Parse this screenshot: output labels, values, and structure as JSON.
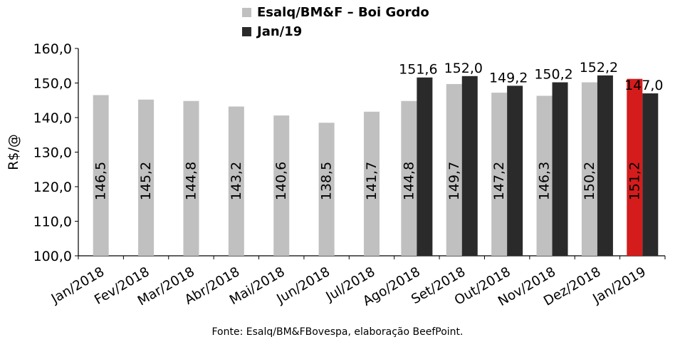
{
  "chart_data": {
    "type": "bar",
    "ylabel": "R$/@",
    "ylim": [
      100,
      160
    ],
    "yticks": [
      "100,0",
      "110,0",
      "120,0",
      "130,0",
      "140,0",
      "150,0",
      "160,0"
    ],
    "grid": false,
    "legend_position": "top-center",
    "categories": [
      "Jan/2018",
      "Fev/2018",
      "Mar/2018",
      "Abr/2018",
      "Mai/2018",
      "Jun/2018",
      "Jul/2018",
      "Ago/2018",
      "Set/2018",
      "Out/2018",
      "Nov/2018",
      "Dez/2018",
      "Jan/2019"
    ],
    "series": [
      {
        "name": "Esalq/BM&F – Boi Gordo",
        "color": "#c0c0c0",
        "values": [
          146.5,
          145.2,
          144.8,
          143.2,
          140.6,
          138.5,
          141.7,
          144.8,
          149.7,
          147.2,
          146.3,
          150.2,
          151.2
        ],
        "labels": [
          "146,5",
          "145,2",
          "144,8",
          "143,2",
          "140,6",
          "138,5",
          "141,7",
          "144,8",
          "149,7",
          "147,2",
          "146,3",
          "150,2",
          "151,2"
        ],
        "highlight": {
          "index": 12,
          "color": "#d41c1c"
        }
      },
      {
        "name": "Jan/19",
        "color": "#2a2a2a",
        "values": [
          null,
          null,
          null,
          null,
          null,
          null,
          null,
          151.6,
          152.0,
          149.2,
          150.2,
          152.2,
          147.0
        ],
        "labels": [
          null,
          null,
          null,
          null,
          null,
          null,
          null,
          "151,6",
          "152,0",
          "149,2",
          "150,2",
          "152,2",
          "147,0"
        ]
      }
    ]
  },
  "source": "Fonte: Esalq/BM&FBovespa, elaboração BeefPoint."
}
